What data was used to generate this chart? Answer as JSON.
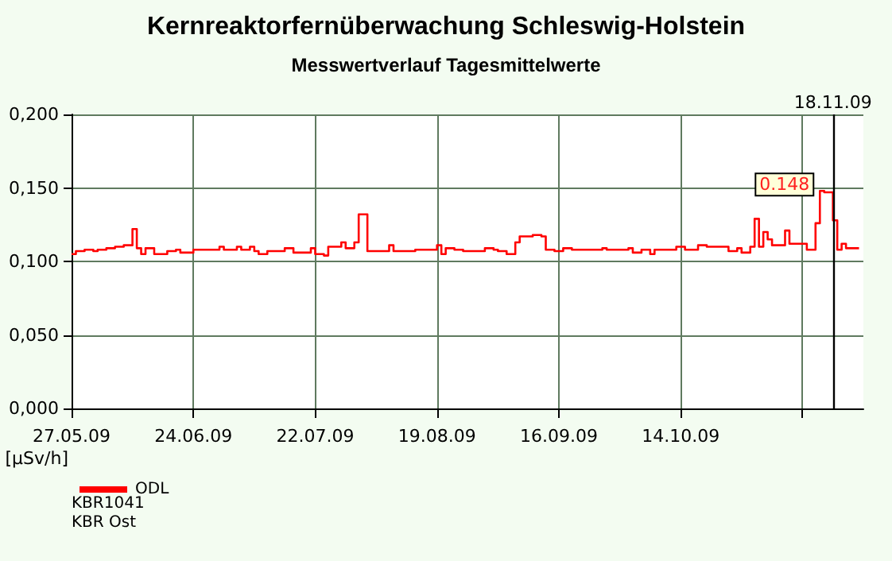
{
  "chart_data": {
    "type": "step",
    "title": "Kernreaktorfernüberwachung Schleswig-Holstein",
    "subtitle": "Messwertverlauf Tagesmittelwerte",
    "ylabel": "[µSv/h]",
    "x": [
      "2009-05-27",
      "2009-05-28",
      "2009-05-30",
      "2009-06-01",
      "2009-06-02",
      "2009-06-04",
      "2009-06-06",
      "2009-06-08",
      "2009-06-10",
      "2009-06-11",
      "2009-06-12",
      "2009-06-13",
      "2009-06-15",
      "2009-06-18",
      "2009-06-20",
      "2009-06-21",
      "2009-06-24",
      "2009-06-30",
      "2009-07-01",
      "2009-07-04",
      "2009-07-05",
      "2009-07-07",
      "2009-07-08",
      "2009-07-09",
      "2009-07-11",
      "2009-07-15",
      "2009-07-17",
      "2009-07-21",
      "2009-07-22",
      "2009-07-24",
      "2009-07-25",
      "2009-07-28",
      "2009-07-29",
      "2009-07-31",
      "2009-08-01",
      "2009-08-03",
      "2009-08-08",
      "2009-08-09",
      "2009-08-14",
      "2009-08-19",
      "2009-08-20",
      "2009-08-21",
      "2009-08-23",
      "2009-08-25",
      "2009-08-30",
      "2009-09-01",
      "2009-09-02",
      "2009-09-04",
      "2009-09-06",
      "2009-09-07",
      "2009-09-10",
      "2009-09-12",
      "2009-09-13",
      "2009-09-15",
      "2009-09-17",
      "2009-09-19",
      "2009-09-26",
      "2009-09-27",
      "2009-10-02",
      "2009-10-03",
      "2009-10-05",
      "2009-10-07",
      "2009-10-08",
      "2009-10-13",
      "2009-10-15",
      "2009-10-18",
      "2009-10-20",
      "2009-10-25",
      "2009-10-27",
      "2009-10-28",
      "2009-10-30",
      "2009-10-31",
      "2009-11-01",
      "2009-11-02",
      "2009-11-03",
      "2009-11-04",
      "2009-11-07",
      "2009-11-08",
      "2009-11-12",
      "2009-11-14",
      "2009-11-15",
      "2009-11-16",
      "2009-11-18",
      "2009-11-19",
      "2009-11-20",
      "2009-11-21",
      "2009-11-24"
    ],
    "series": [
      {
        "name": "ODL",
        "color": "#ff0000",
        "values": [
          0.105,
          0.107,
          0.108,
          0.107,
          0.108,
          0.109,
          0.11,
          0.111,
          0.122,
          0.109,
          0.105,
          0.109,
          0.105,
          0.107,
          0.108,
          0.106,
          0.108,
          0.11,
          0.108,
          0.11,
          0.108,
          0.11,
          0.107,
          0.105,
          0.107,
          0.109,
          0.106,
          0.109,
          0.105,
          0.104,
          0.11,
          0.113,
          0.109,
          0.113,
          0.132,
          0.107,
          0.111,
          0.107,
          0.108,
          0.111,
          0.105,
          0.109,
          0.108,
          0.107,
          0.109,
          0.108,
          0.107,
          0.105,
          0.113,
          0.117,
          0.118,
          0.117,
          0.108,
          0.107,
          0.109,
          0.108,
          0.109,
          0.108,
          0.109,
          0.106,
          0.108,
          0.105,
          0.108,
          0.11,
          0.108,
          0.111,
          0.11,
          0.107,
          0.109,
          0.106,
          0.11,
          0.129,
          0.11,
          0.12,
          0.115,
          0.111,
          0.121,
          0.112,
          0.108,
          0.126,
          0.148,
          0.147,
          0.128,
          0.108,
          0.112,
          0.109,
          0.109
        ]
      }
    ],
    "xlim": [
      "2009-05-27",
      "2009-11-25"
    ],
    "xticks": [
      {
        "value": "2009-05-27",
        "label": "27.05.09"
      },
      {
        "value": "2009-06-24",
        "label": "24.06.09"
      },
      {
        "value": "2009-07-22",
        "label": "22.07.09"
      },
      {
        "value": "2009-08-19",
        "label": "19.08.09"
      },
      {
        "value": "2009-09-16",
        "label": "16.09.09"
      },
      {
        "value": "2009-10-14",
        "label": "14.10.09"
      },
      {
        "value": "2009-11-11",
        "label": null
      }
    ],
    "ylim": [
      0,
      0.2
    ],
    "yticks": [
      {
        "value": 0,
        "label": "0,000"
      },
      {
        "value": 0.05,
        "label": "0,050"
      },
      {
        "value": 0.1,
        "label": "0,100"
      },
      {
        "value": 0.15,
        "label": "0,150"
      },
      {
        "value": 0.2,
        "label": "0,200"
      }
    ],
    "ref_lines": [
      {
        "axis": "x",
        "value": "2009-11-18",
        "label": "18.11.09",
        "color": "#000000"
      }
    ],
    "annotations": [
      {
        "text": "0.148",
        "x": "2009-11-15",
        "y": 0.148
      },
      "KBR1041",
      "KBR Ost"
    ],
    "grid": true,
    "legend": "bottom left",
    "line_style": "solid",
    "marker": "none"
  }
}
